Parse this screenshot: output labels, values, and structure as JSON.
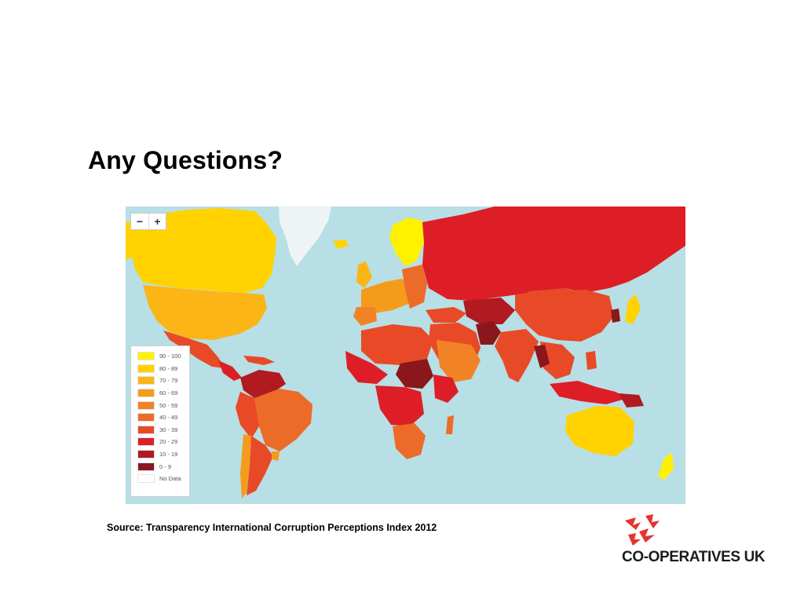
{
  "slide": {
    "title": "Any Questions?",
    "source": "Source: Transparency International Corruption Perceptions Index 2012"
  },
  "map": {
    "zoom_out_label": "−",
    "zoom_in_label": "+",
    "ocean_color": "#b7dfe5",
    "legend": [
      {
        "label": "90 - 100",
        "color": "#fff200"
      },
      {
        "label": "80 - 89",
        "color": "#ffd200"
      },
      {
        "label": "70 - 79",
        "color": "#fbb516"
      },
      {
        "label": "60 - 69",
        "color": "#f59b1c"
      },
      {
        "label": "50 - 59",
        "color": "#f18326"
      },
      {
        "label": "40 - 49",
        "color": "#ec6b28"
      },
      {
        "label": "30 - 39",
        "color": "#e84a27"
      },
      {
        "label": "20 - 29",
        "color": "#dd1e26"
      },
      {
        "label": "10 - 19",
        "color": "#b01a20"
      },
      {
        "label": "0 - 9",
        "color": "#8a171b"
      },
      {
        "label": "No Data",
        "color": "#ffffff"
      }
    ]
  },
  "logo": {
    "text": "CO-OPERATIVES UK",
    "icon": "birds-icon",
    "color": "#e3342f"
  }
}
